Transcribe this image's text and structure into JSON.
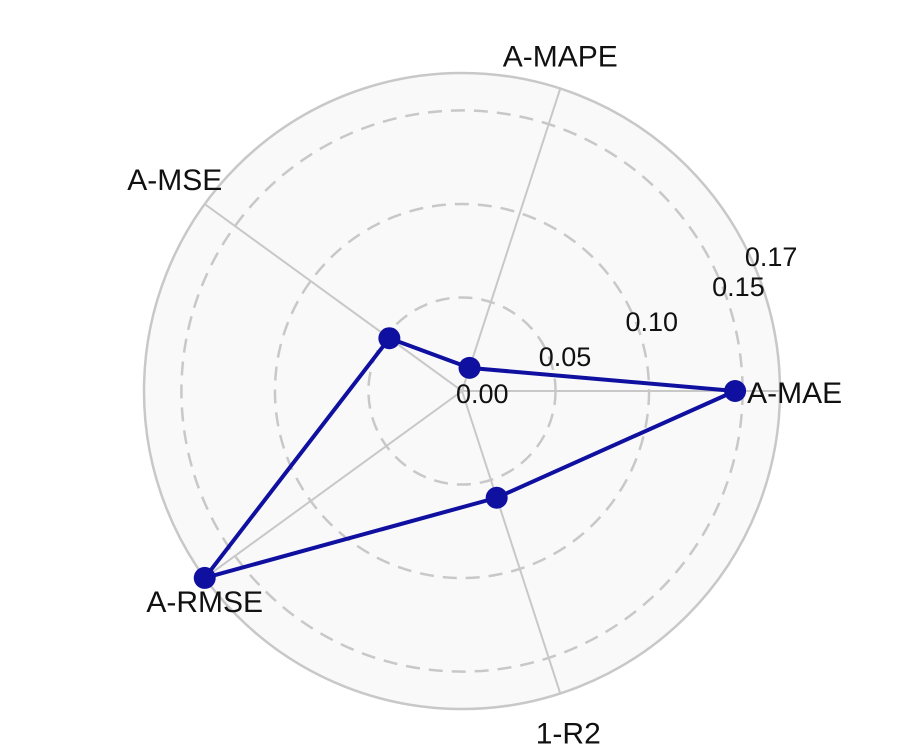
{
  "chart_data": {
    "type": "radar",
    "categories": [
      "A-MAE",
      "A-MAPE",
      "A-MSE",
      "A-RMSE",
      "1-R2"
    ],
    "series": [
      {
        "values": [
          0.146,
          0.013,
          0.048,
          0.17,
          0.06
        ]
      }
    ],
    "rlim": [
      0,
      0.17
    ],
    "rticks": [
      "0.00",
      "0.05",
      "0.10",
      "0.15",
      "0.17"
    ],
    "rtick_values": [
      0,
      0.05,
      0.1,
      0.15,
      0.17
    ],
    "grid": true,
    "colors": {
      "series": "#1010a0",
      "grid": "#c8c8c8",
      "background": "#f9f9fa"
    }
  }
}
